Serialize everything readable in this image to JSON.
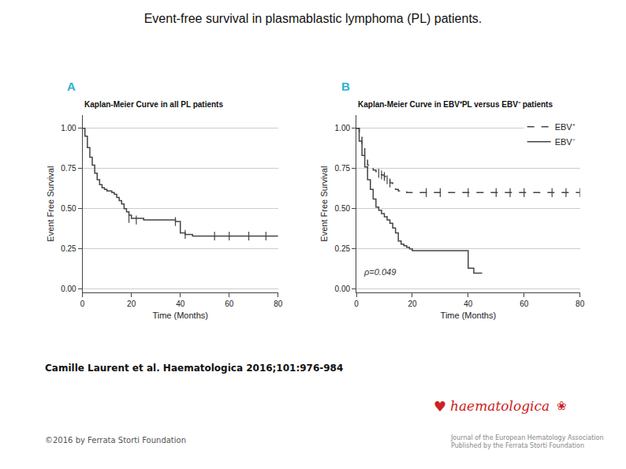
{
  "title": "Event-free survival in plasmablastic lymphoma (PL) patients.",
  "annotations": [
    {
      "text": "Camille Laurent et al. Haematologica 2016;101:976-984",
      "color": "#111111"
    },
    {
      "text": "©2016 by Ferrata Storti Foundation",
      "color": "#555555"
    },
    {
      "text": "♥",
      "color": "#cc2222"
    },
    {
      "text": "haematologica",
      "color": "#cc2222"
    },
    {
      "text": "❀",
      "color": "#cc2222"
    },
    {
      "text": "Journal of the European Hematology Association\nPublished by the Ferrata Storti Foundation",
      "color": "#888888"
    }
  ],
  "chart_data": [
    {
      "type": "step",
      "title": "Kaplan-Meier Curve in all PL patients",
      "xlabel": "Time (Months)",
      "ylabel": "Event Free Survival",
      "xlim": [
        0,
        80
      ],
      "ylim": [
        -0.02,
        1.08
      ],
      "xticks": [
        0,
        20,
        40,
        60,
        80
      ],
      "yticks": [
        {
          "value": 0,
          "label": "0.00"
        },
        0.25,
        {
          "value": 0.5,
          "label": "0.50"
        },
        0.75,
        {
          "value": 1,
          "label": "1.00"
        }
      ],
      "grid": "y",
      "annotations": [
        {
          "text": "A",
          "color": "#2ab0d0"
        }
      ],
      "series": [
        {
          "color": "#444444",
          "line_style": "solid",
          "x": [
            0,
            1,
            2,
            3,
            4,
            5,
            6,
            7,
            8,
            9,
            10,
            12,
            13,
            14,
            15,
            16,
            17,
            18,
            19,
            20,
            25,
            30,
            35,
            38,
            40,
            42,
            45,
            50,
            55,
            60,
            65,
            70,
            75,
            80
          ],
          "values": [
            1.0,
            0.95,
            0.88,
            0.82,
            0.77,
            0.72,
            0.68,
            0.65,
            0.63,
            0.62,
            0.61,
            0.6,
            0.59,
            0.57,
            0.55,
            0.53,
            0.5,
            0.48,
            0.46,
            0.44,
            0.43,
            0.43,
            0.43,
            0.42,
            0.35,
            0.34,
            0.33,
            0.33,
            0.33,
            0.33,
            0.33,
            0.33,
            0.33,
            0.33
          ]
        },
        {
          "type": "scatter",
          "marker": "vline",
          "color": "#444444",
          "x": [
            19,
            22,
            38,
            42,
            54,
            60,
            68,
            75
          ],
          "values": [
            0.44,
            0.43,
            0.42,
            0.34,
            0.33,
            0.33,
            0.33,
            0.33
          ]
        }
      ]
    },
    {
      "type": "step",
      "title": "Kaplan-Meier Curve in EBV⁺PL versus EBV⁻ patients",
      "xlabel": "Time (Months)",
      "ylabel": "Event Free Survival",
      "xlim": [
        0,
        80
      ],
      "ylim": [
        -0.02,
        1.08
      ],
      "xticks": [
        0,
        20,
        40,
        60,
        80
      ],
      "yticks": [
        {
          "value": 0,
          "label": "0.00"
        },
        0.25,
        {
          "value": 0.5,
          "label": "0.50"
        },
        0.75,
        {
          "value": 1,
          "label": "1.00"
        }
      ],
      "grid": "y",
      "legend": "upper right",
      "annotations": [
        {
          "text": "B",
          "color": "#2ab0d0"
        },
        {
          "text": "ρ=0.049",
          "x": 2,
          "y": 0.07,
          "color": "#333333"
        }
      ],
      "series": [
        {
          "name": "EBV⁺",
          "color": "#444444",
          "line_style": "dashed",
          "x": [
            0,
            1,
            2,
            3,
            4,
            5,
            6,
            7,
            8,
            9,
            10,
            11,
            12,
            13,
            14,
            15,
            18,
            20,
            25,
            30,
            35,
            40,
            45,
            50,
            55,
            60,
            65,
            70,
            75,
            80
          ],
          "values": [
            1.0,
            0.95,
            0.88,
            0.82,
            0.77,
            0.75,
            0.74,
            0.73,
            0.72,
            0.71,
            0.7,
            0.68,
            0.66,
            0.64,
            0.62,
            0.61,
            0.6,
            0.6,
            0.6,
            0.6,
            0.6,
            0.6,
            0.6,
            0.6,
            0.6,
            0.6,
            0.6,
            0.6,
            0.6,
            0.6
          ]
        },
        {
          "name": "EBV⁻",
          "color": "#444444",
          "line_style": "solid",
          "x": [
            0,
            1,
            2,
            3,
            4,
            5,
            6,
            7,
            8,
            9,
            10,
            11,
            12,
            13,
            14,
            15,
            16,
            17,
            18,
            19,
            20,
            25,
            30,
            35,
            40,
            42,
            45
          ],
          "values": [
            1.0,
            0.92,
            0.83,
            0.76,
            0.68,
            0.62,
            0.56,
            0.51,
            0.49,
            0.47,
            0.45,
            0.43,
            0.41,
            0.38,
            0.35,
            0.3,
            0.28,
            0.27,
            0.26,
            0.25,
            0.24,
            0.24,
            0.24,
            0.24,
            0.13,
            0.1,
            0.1
          ]
        },
        {
          "type": "scatter",
          "marker": "vline",
          "color": "#444444",
          "x": [
            8,
            9,
            10,
            11,
            12,
            25,
            30,
            40,
            50,
            55,
            60,
            70,
            75,
            80
          ],
          "values": [
            0.72,
            0.71,
            0.7,
            0.68,
            0.66,
            0.6,
            0.6,
            0.6,
            0.6,
            0.6,
            0.6,
            0.6,
            0.6,
            0.6
          ]
        }
      ]
    }
  ]
}
